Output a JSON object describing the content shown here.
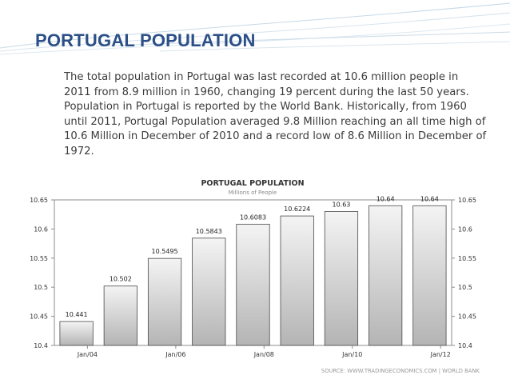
{
  "slide": {
    "title": "PORTUGAL POPULATION",
    "paragraph": "The total population in Portugal was last recorded at 10.6 million people in 2011 from 8.9 million in 1960, changing 19 percent during the last 50 years. Population in Portugal is reported by the World Bank. Historically, from 1960 until 2011, Portugal Population averaged 9.8 Million reaching an all time high of 10.6 Million in December of 2010 and a record low of 8.6 Million in December of 1972."
  },
  "colors": {
    "title": "#2b4f86",
    "bar_top": "#f4f4f4",
    "bar_bottom": "#b4b4b4",
    "bar_stroke": "#4a4a4a"
  },
  "chart_data": {
    "type": "bar",
    "title": "PORTUGAL POPULATION",
    "subtitle": "Millions of People",
    "values": [
      10.441,
      10.502,
      10.5495,
      10.5843,
      10.6083,
      10.6224,
      10.63,
      10.64,
      10.64
    ],
    "value_labels": [
      "10.441",
      "10.502",
      "10.5495",
      "10.5843",
      "10.6083",
      "10.6224",
      "10.63",
      "10.64",
      "10.64"
    ],
    "x_tick_labels": [
      "Jan/04",
      "Jan/06",
      "Jan/08",
      "Jan/10",
      "Jan/12"
    ],
    "ylim": [
      10.4,
      10.65
    ],
    "y_ticks": [
      10.4,
      10.45,
      10.5,
      10.55,
      10.6,
      10.65
    ],
    "y_tick_labels": [
      "10.4",
      "10.45",
      "10.5",
      "10.55",
      "10.6",
      "10.65"
    ],
    "y_axes": "left and right",
    "grid": false,
    "source": "SOURCE: WWW.TRADINGECONOMICS.COM  |  WORLD BANK"
  }
}
